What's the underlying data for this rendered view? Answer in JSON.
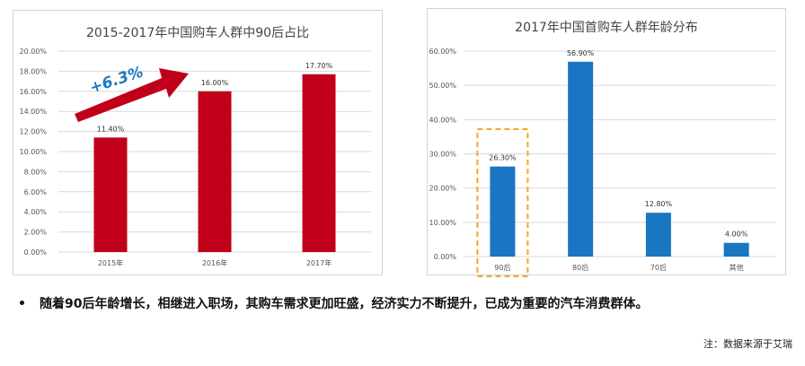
{
  "chart_data": [
    {
      "type": "bar",
      "title": "2015-2017年中国购车人群中90后占比",
      "categories": [
        "2015年",
        "2016年",
        "2017年"
      ],
      "values": [
        11.4,
        16.0,
        17.7
      ],
      "data_labels": [
        "11.40%",
        "16.00%",
        "17.70%"
      ],
      "ylim": [
        0,
        20
      ],
      "yticks": [
        0,
        2,
        4,
        6,
        8,
        10,
        12,
        14,
        16,
        18,
        20
      ],
      "ytick_labels": [
        "0.00%",
        "2.00%",
        "4.00%",
        "6.00%",
        "8.00%",
        "10.00%",
        "12.00%",
        "14.00%",
        "16.00%",
        "18.00%",
        "20.00%"
      ],
      "grid": true,
      "bar_color": "#c00018",
      "annotation": {
        "text": "+6.3%",
        "arrow_color": "#c00018",
        "text_color": "#1f78c1"
      }
    },
    {
      "type": "bar",
      "title": "2017年中国首购车人群年龄分布",
      "categories": [
        "90后",
        "80后",
        "70后",
        "其他"
      ],
      "values": [
        26.3,
        56.9,
        12.8,
        4.0
      ],
      "data_labels": [
        "26.30%",
        "56.90%",
        "12.80%",
        "4.00%"
      ],
      "ylim": [
        0,
        60
      ],
      "yticks": [
        0,
        10,
        20,
        30,
        40,
        50,
        60
      ],
      "ytick_labels": [
        "0.00%",
        "10.00%",
        "20.00%",
        "30.00%",
        "40.00%",
        "50.00%",
        "60.00%"
      ],
      "grid": true,
      "bar_color": "#1a75c2",
      "highlight": {
        "category": "90后",
        "color": "#f5a623"
      }
    }
  ],
  "bullet": {
    "symbol": "•",
    "text": "随着90后年龄增长，相继进入职场，其购车需求更加旺盛，经济实力不断提升，已成为重要的汽车消费群体。"
  },
  "footnote": "注：数据来源于艾瑞"
}
